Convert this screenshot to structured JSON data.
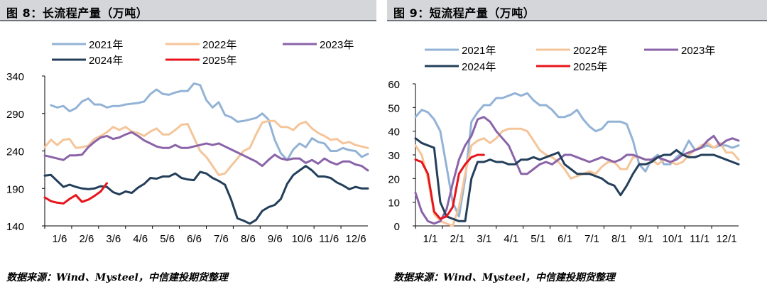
{
  "charts": [
    {
      "title": "图 8：长流程产量（万吨）",
      "source": "数据来源：Wind、Mysteel，中信建投期货整理",
      "chart_data": {
        "type": "line",
        "title": "长流程产量（万吨）",
        "xlabel": "",
        "ylabel": "",
        "ylim": [
          140,
          340
        ],
        "yticks": [
          140,
          190,
          240,
          290,
          340
        ],
        "x_range": [
          1,
          53
        ],
        "xtick_labels": [
          "1/6",
          "2/6",
          "3/6",
          "4/6",
          "5/6",
          "6/6",
          "7/6",
          "8/6",
          "9/6",
          "10/6",
          "11/6",
          "12/6"
        ],
        "legend_position": "top",
        "grid": false,
        "series": [
          {
            "name": "2021年",
            "color": "#93b3d6",
            "x": [
              2,
              3,
              4,
              5,
              6,
              7,
              8,
              9,
              10,
              11,
              12,
              13,
              14,
              15,
              16,
              17,
              18,
              19,
              20,
              21,
              22,
              23,
              24,
              25,
              26,
              27,
              28,
              29,
              30,
              31,
              32,
              33,
              34,
              35,
              36,
              37,
              38,
              39,
              40,
              41,
              42,
              43,
              44,
              45,
              46,
              47,
              48,
              49,
              50,
              51,
              52,
              53
            ],
            "y": [
              301,
              298,
              300,
              293,
              297,
              306,
              310,
              302,
              302,
              298,
              300,
              300,
              302,
              303,
              304,
              306,
              316,
              322,
              316,
              315,
              318,
              320,
              320,
              330,
              328,
              308,
              298,
              305,
              288,
              285,
              279,
              280,
              282,
              284,
              290,
              282,
              255,
              237,
              228,
              242,
              250,
              245,
              257,
              252,
              250,
              240,
              240,
              244,
              241,
              240,
              232,
              236
            ]
          },
          {
            "name": "2022年",
            "color": "#f5c59a",
            "x": [
              1,
              2,
              3,
              4,
              5,
              6,
              7,
              8,
              9,
              10,
              11,
              12,
              13,
              14,
              15,
              16,
              17,
              18,
              19,
              20,
              21,
              22,
              23,
              24,
              25,
              26,
              27,
              28,
              29,
              30,
              31,
              32,
              33,
              34,
              35,
              36,
              37,
              38,
              39,
              40,
              41,
              42,
              43,
              44,
              45,
              46,
              47,
              48,
              49,
              50,
              51,
              52,
              53
            ],
            "y": [
              245,
              255,
              248,
              255,
              256,
              244,
              245,
              247,
              256,
              260,
              265,
              272,
              268,
              272,
              266,
              264,
              260,
              266,
              270,
              262,
              262,
              268,
              275,
              276,
              258,
              240,
              232,
              220,
              208,
              210,
              220,
              230,
              240,
              244,
              262,
              278,
              280,
              280,
              272,
              272,
              268,
              276,
              279,
              270,
              264,
              260,
              255,
              256,
              250,
              252,
              248,
              246,
              244
            ]
          },
          {
            "name": "2023年",
            "color": "#8a63a8",
            "x": [
              1,
              2,
              3,
              4,
              5,
              6,
              7,
              8,
              9,
              10,
              11,
              12,
              13,
              14,
              15,
              16,
              17,
              18,
              19,
              20,
              21,
              22,
              23,
              24,
              25,
              26,
              27,
              28,
              29,
              30,
              31,
              32,
              33,
              34,
              35,
              36,
              37,
              38,
              39,
              40,
              41,
              42,
              43,
              44,
              45,
              46,
              47,
              48,
              49,
              50,
              51,
              52,
              53
            ],
            "y": [
              234,
              232,
              230,
              228,
              234,
              234,
              235,
              245,
              252,
              258,
              260,
              256,
              258,
              262,
              265,
              260,
              254,
              250,
              246,
              244,
              244,
              248,
              244,
              244,
              246,
              248,
              250,
              248,
              250,
              246,
              242,
              238,
              234,
              230,
              226,
              220,
              228,
              235,
              230,
              228,
              230,
              230,
              224,
              228,
              223,
              230,
              225,
              222,
              226,
              226,
              222,
              220,
              214
            ]
          },
          {
            "name": "2024年",
            "color": "#243f5a",
            "x": [
              1,
              2,
              3,
              4,
              5,
              6,
              7,
              8,
              9,
              10,
              11,
              12,
              13,
              14,
              15,
              16,
              17,
              18,
              19,
              20,
              21,
              22,
              23,
              24,
              25,
              26,
              27,
              28,
              29,
              30,
              31,
              32,
              33,
              34,
              35,
              36,
              37,
              38,
              39,
              40,
              41,
              42,
              43,
              44,
              45,
              46,
              47,
              48,
              49,
              50,
              51,
              52,
              53
            ],
            "y": [
              207,
              208,
              200,
              192,
              195,
              192,
              190,
              189,
              190,
              193,
              192,
              185,
              182,
              186,
              184,
              191,
              196,
              204,
              203,
              206,
              206,
              210,
              204,
              202,
              201,
              212,
              210,
              204,
              200,
              195,
              175,
              150,
              147,
              143,
              148,
              160,
              165,
              168,
              176,
              196,
              208,
              214,
              220,
              214,
              206,
              206,
              204,
              198,
              194,
              189,
              192,
              190,
              190
            ]
          },
          {
            "name": "2025年",
            "color": "#e8141b",
            "x": [
              1,
              2,
              3,
              4,
              5,
              6,
              7,
              8,
              9,
              10,
              11
            ],
            "y": [
              178,
              173,
              171,
              170,
              176,
              181,
              172,
              175,
              180,
              186,
              197
            ]
          }
        ]
      }
    },
    {
      "title": "图 9：短流程产量（万吨）",
      "source": "数据来源：Wind、Mysteel，中信建投期货整理",
      "chart_data": {
        "type": "line",
        "title": "短流程产量（万吨）",
        "xlabel": "",
        "ylabel": "",
        "ylim": [
          0,
          60
        ],
        "yticks": [
          0,
          10,
          20,
          30,
          40,
          50,
          60
        ],
        "x_range": [
          1,
          53
        ],
        "xtick_labels": [
          "1/1",
          "2/1",
          "3/1",
          "4/1",
          "5/1",
          "6/1",
          "7/1",
          "8/1",
          "9/1",
          "10/1",
          "11/1",
          "12/1"
        ],
        "legend_position": "top",
        "grid": false,
        "series": [
          {
            "name": "2021年",
            "color": "#93b3d6",
            "x": [
              1,
              2,
              3,
              4,
              5,
              6,
              7,
              8,
              9,
              10,
              11,
              12,
              13,
              14,
              15,
              16,
              17,
              18,
              19,
              20,
              21,
              22,
              23,
              24,
              25,
              26,
              27,
              28,
              29,
              30,
              31,
              32,
              33,
              34,
              35,
              36,
              37,
              38,
              39,
              40,
              41,
              42,
              43,
              44,
              45,
              46,
              47,
              48,
              49,
              50,
              51,
              52,
              53
            ],
            "y": [
              46,
              49,
              48,
              45,
              40,
              25,
              10,
              4,
              20,
              44,
              48,
              51,
              51,
              54,
              54,
              55,
              56,
              55,
              56,
              53,
              51,
              51,
              49,
              46,
              46,
              47,
              49,
              45,
              42,
              40,
              41,
              44,
              44,
              44,
              43,
              36,
              26,
              23,
              28,
              30,
              26,
              26,
              29,
              31,
              36,
              32,
              33,
              34,
              33,
              34,
              34,
              33,
              34
            ]
          },
          {
            "name": "2022年",
            "color": "#f5c59a",
            "x": [
              1,
              2,
              3,
              4,
              5,
              6,
              7,
              8,
              9,
              10,
              11,
              12,
              13,
              14,
              15,
              16,
              17,
              18,
              19,
              20,
              21,
              22,
              23,
              24,
              25,
              26,
              27,
              28,
              29,
              30,
              31,
              32,
              33,
              34,
              35,
              36,
              37,
              38,
              39,
              40,
              41,
              42,
              43,
              44,
              45,
              46,
              47,
              48,
              49,
              50,
              51,
              52,
              53
            ],
            "y": [
              34,
              30,
              20,
              5,
              2,
              1,
              0,
              8,
              22,
              34,
              36,
              37,
              35,
              37,
              40,
              41,
              41,
              41,
              40,
              36,
              32,
              30,
              29,
              27,
              24,
              20,
              21,
              22,
              23,
              22,
              25,
              27,
              27,
              24,
              24,
              29,
              29,
              28,
              28,
              26,
              28,
              27,
              26,
              27,
              30,
              32,
              34,
              35,
              33,
              35,
              31,
              31,
              28
            ]
          },
          {
            "name": "2023年",
            "color": "#8a63a8",
            "x": [
              1,
              2,
              3,
              4,
              5,
              6,
              7,
              8,
              9,
              10,
              11,
              12,
              13,
              14,
              15,
              16,
              17,
              18,
              19,
              20,
              21,
              22,
              23,
              24,
              25,
              26,
              27,
              28,
              29,
              30,
              31,
              32,
              33,
              34,
              35,
              36,
              37,
              38,
              39,
              40,
              41,
              42,
              43,
              44,
              45,
              46,
              47,
              48,
              49,
              50,
              51,
              52,
              53
            ],
            "y": [
              14,
              6,
              2,
              1,
              2,
              7,
              18,
              28,
              34,
              38,
              45,
              46,
              44,
              40,
              37,
              34,
              28,
              22,
              22,
              24,
              26,
              27,
              26,
              28,
              30,
              30,
              29,
              28,
              27,
              28,
              29,
              28,
              27,
              28,
              30,
              30,
              29,
              28,
              28,
              29,
              28,
              27,
              28,
              30,
              31,
              32,
              33,
              36,
              38,
              34,
              36,
              37,
              36
            ]
          },
          {
            "name": "2024年",
            "color": "#243f5a",
            "x": [
              1,
              2,
              3,
              4,
              5,
              6,
              7,
              8,
              9,
              10,
              11,
              12,
              13,
              14,
              15,
              16,
              17,
              18,
              19,
              20,
              21,
              22,
              23,
              24,
              25,
              26,
              27,
              28,
              29,
              30,
              31,
              32,
              33,
              34,
              35,
              36,
              37,
              38,
              39,
              40,
              41,
              42,
              43,
              44,
              45,
              46,
              47,
              48,
              49,
              50,
              51,
              52,
              53
            ],
            "y": [
              37,
              35,
              34,
              33,
              10,
              4,
              3,
              2,
              2,
              20,
              27,
              27,
              28,
              27,
              27,
              26,
              26,
              28,
              28,
              29,
              28,
              29,
              30,
              31,
              26,
              24,
              22,
              22,
              22,
              21,
              20,
              18,
              17,
              13,
              17,
              22,
              26,
              26,
              27,
              29,
              30,
              30,
              32,
              30,
              29,
              29,
              30,
              30,
              30,
              29,
              28,
              27,
              26
            ]
          },
          {
            "name": "2025年",
            "color": "#e8141b",
            "x": [
              1,
              2,
              3,
              4,
              5,
              6,
              7,
              8,
              9,
              10,
              11,
              12
            ],
            "y": [
              28,
              27,
              22,
              6,
              3,
              4,
              8,
              22,
              26,
              29,
              30,
              30
            ]
          }
        ]
      }
    }
  ]
}
